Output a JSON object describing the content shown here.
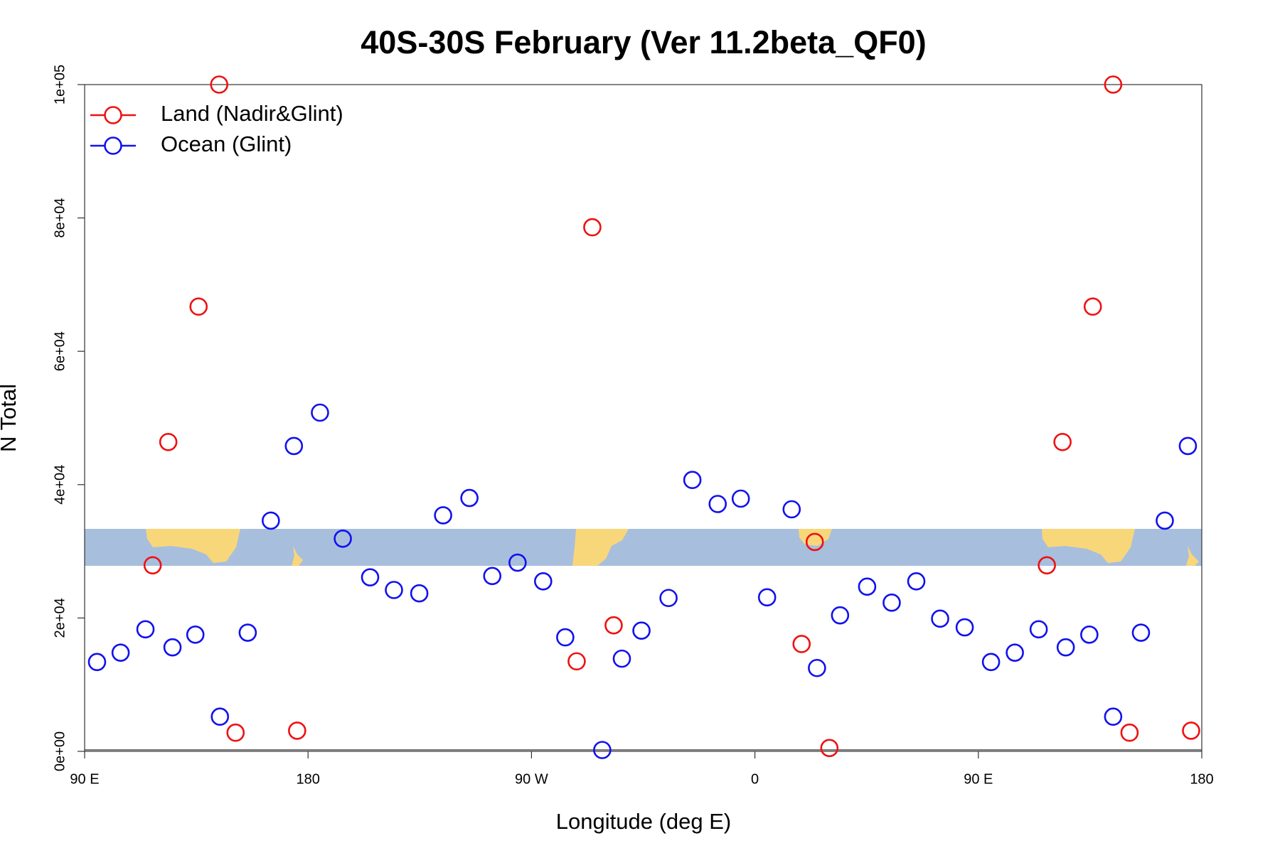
{
  "chart_data": {
    "type": "scatter",
    "title": "40S-30S February (Ver 11.2beta_QF0)",
    "x_label": "Longitude (deg E)",
    "y_label": "N Total",
    "xlim": [
      90,
      540
    ],
    "ylim": [
      0,
      100000
    ],
    "xticks": [
      {
        "value": 90,
        "label": "90 E"
      },
      180,
      {
        "value": 270,
        "label": "90 W"
      },
      {
        "value": 360,
        "label": "0"
      },
      {
        "value": 450,
        "label": "90 E"
      },
      {
        "value": 540,
        "label": "180"
      }
    ],
    "yticks": [
      {
        "value": 0,
        "label": "0e+00"
      },
      {
        "value": 20000,
        "label": "2e+04"
      },
      {
        "value": 40000,
        "label": "4e+04"
      },
      {
        "value": 60000,
        "label": "6e+04"
      },
      {
        "value": 80000,
        "label": "8e+04"
      },
      {
        "value": 100000,
        "label": "1e+05"
      }
    ],
    "legend": "top-left",
    "series": [
      {
        "name": "Land (Nadir&Glint)",
        "color": "#ee1111",
        "x": [
          117.4,
          123.7,
          135.9,
          144.2,
          150.8,
          175.6,
          288.2,
          294.5,
          303.1,
          378.8,
          384.1,
          390,
          477.6,
          483.9,
          496.1,
          504.3,
          510.9,
          535.7
        ],
        "values": [
          27900,
          46400,
          66700,
          100000,
          2800,
          3100,
          13500,
          78600,
          18900,
          16100,
          31400,
          500,
          27900,
          46400,
          66700,
          100000,
          2800,
          3100
        ]
      },
      {
        "name": "Ocean (Glint)",
        "color": "#1111ee",
        "x": [
          95,
          104.5,
          114.5,
          125.4,
          134.6,
          144.5,
          155.7,
          165,
          174.3,
          184.8,
          194,
          205,
          214.6,
          224.8,
          234.4,
          245,
          254.2,
          264.4,
          274.7,
          283.6,
          298.5,
          306.4,
          314.3,
          325.2,
          334.8,
          345,
          354.3,
          364.9,
          374.8,
          385,
          394.3,
          405.2,
          415.1,
          425,
          434.6,
          444.5,
          455.1,
          464.7,
          474.3,
          485.2,
          494.7,
          504.3,
          515.5,
          525.1,
          534.4
        ],
        "values": [
          13400,
          14800,
          18300,
          15600,
          17500,
          5200,
          17800,
          34600,
          45800,
          50800,
          31900,
          26100,
          24200,
          23700,
          35400,
          38000,
          26300,
          28300,
          25500,
          17100,
          200,
          13900,
          18100,
          23000,
          40700,
          37100,
          37900,
          23100,
          36300,
          12500,
          20400,
          24700,
          22300,
          25500,
          19900,
          18600,
          13400,
          14800,
          18300,
          15600,
          17500,
          5200,
          17800,
          34600,
          45800
        ]
      }
    ]
  }
}
